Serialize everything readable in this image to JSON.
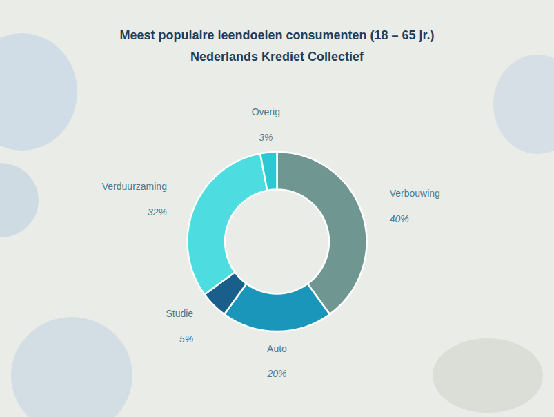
{
  "chart_data": {
    "type": "pie",
    "title": "Meest populaire leendoelen consumenten (18 – 65 jr.)",
    "subtitle": "Nederlands Krediet Collectief",
    "categories": [
      "Verbouwing",
      "Auto",
      "Studie",
      "Verduurzaming",
      "Overig"
    ],
    "values": [
      40,
      20,
      5,
      32,
      3
    ],
    "value_labels": [
      "40%",
      "20%",
      "5%",
      "32%",
      "3%"
    ],
    "colors": [
      "#6f9690",
      "#1a96ba",
      "#1a5e8c",
      "#4ddce0",
      "#2ec8d5"
    ],
    "data_labels": true
  }
}
